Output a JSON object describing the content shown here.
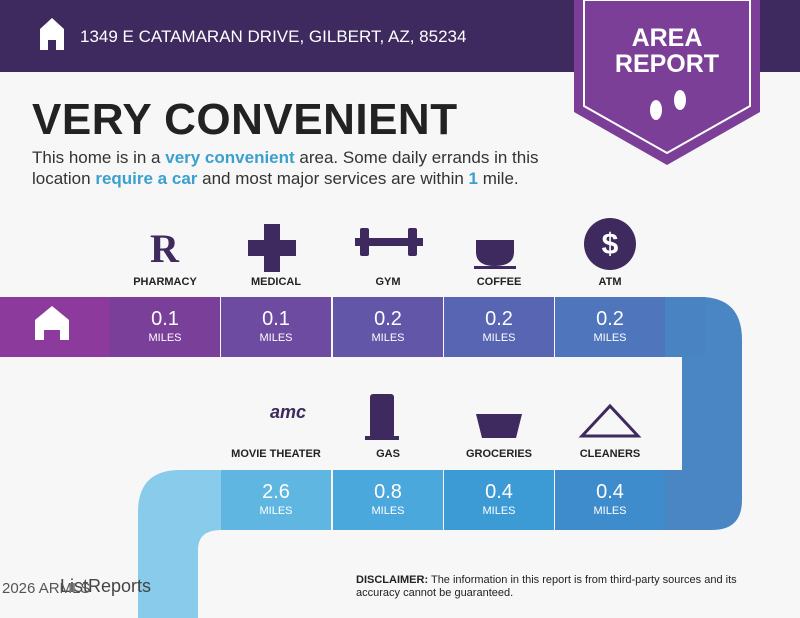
{
  "header": {
    "address": "1349 E CATAMARAN DRIVE, GILBERT, AZ, 85234",
    "badge": [
      "AREA",
      "REPORT"
    ]
  },
  "headline": "VERY CONVENIENT",
  "description": [
    {
      "text": "This home is in a "
    },
    {
      "text": "very convenient",
      "highlight": true
    },
    {
      "text": " area. Some daily errands in this location "
    },
    {
      "text": "require a car",
      "highlight": true
    },
    {
      "text": " and most major services are within "
    },
    {
      "text": "1",
      "highlight": true
    },
    {
      "text": " mile."
    }
  ],
  "services": [
    {
      "label": "PHARMACY",
      "distance": "0.1",
      "unit": "MILES"
    },
    {
      "label": "MEDICAL",
      "distance": "0.1",
      "unit": "MILES"
    },
    {
      "label": "GYM",
      "distance": "0.2",
      "unit": "MILES"
    },
    {
      "label": "COFFEE",
      "distance": "0.2",
      "unit": "MILES"
    },
    {
      "label": "ATM",
      "distance": "0.2",
      "unit": "MILES"
    },
    {
      "label": "MOVIE THEATER",
      "distance": "2.6",
      "unit": "MILES"
    },
    {
      "label": "GAS",
      "distance": "0.8",
      "unit": "MILES"
    },
    {
      "label": "GROCERIES",
      "distance": "0.4",
      "unit": "MILES"
    },
    {
      "label": "CLEANERS",
      "distance": "0.4",
      "unit": "MILES"
    }
  ],
  "footer": {
    "brand": "ListReports",
    "watermark": "2026 ARMLS",
    "disclaimer_label": "DISCLAIMER:",
    "disclaimer": "The information in this report is from third-party sources and its accuracy cannot be guaranteed."
  }
}
